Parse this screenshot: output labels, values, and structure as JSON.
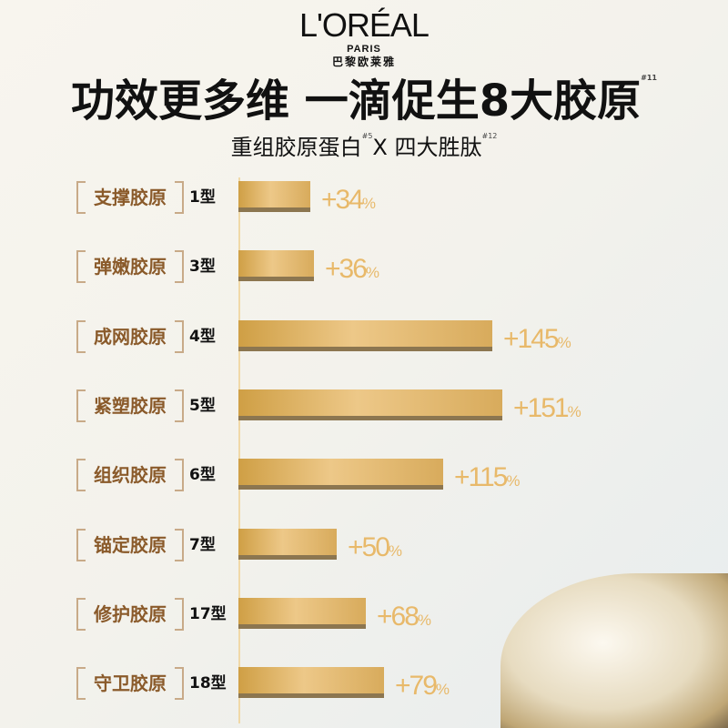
{
  "logo": {
    "brand": "L'ORÉAL",
    "paris": "PARIS",
    "cn": "巴黎欧莱雅"
  },
  "title": "功效更多维 一滴促生8大胶原",
  "title_note": "#11",
  "subtitle": {
    "part1": "重组胶原蛋白",
    "note1": "#5",
    "part2": "X 四大胜肽",
    "note2": "#12"
  },
  "colors": {
    "bar": "#e0b56a",
    "percent": "#e8b96a",
    "label": "#8a5a2a"
  },
  "chart_data": {
    "type": "bar",
    "orientation": "horizontal",
    "categories": [
      "支撑胶原",
      "弹嫩胶原",
      "成网胶原",
      "紧塑胶原",
      "组织胶原",
      "锚定胶原",
      "修护胶原",
      "守卫胶原"
    ],
    "types": [
      "1型",
      "3型",
      "4型",
      "5型",
      "6型",
      "7型",
      "17型",
      "18型"
    ],
    "values": [
      34,
      36,
      145,
      151,
      115,
      50,
      68,
      79
    ],
    "labels": [
      "+34",
      "+36",
      "+145",
      "+151",
      "+115",
      "+50",
      "+68",
      "+79"
    ],
    "unit": "%"
  }
}
